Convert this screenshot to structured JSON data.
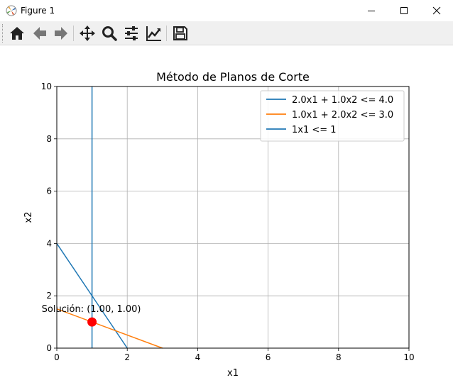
{
  "window": {
    "title": "Figure 1",
    "app_icon": "matplotlib-icon",
    "controls": [
      "minimize-icon",
      "maximize-icon",
      "close-icon"
    ]
  },
  "toolbar": {
    "buttons": [
      {
        "icon": "home-icon",
        "tooltip": ""
      },
      {
        "icon": "back-arrow-icon",
        "tooltip": ""
      },
      {
        "icon": "forward-arrow-icon",
        "tooltip": ""
      },
      {
        "icon": "pan-icon",
        "tooltip": ""
      },
      {
        "icon": "zoom-icon",
        "tooltip": ""
      },
      {
        "icon": "configure-subplots-icon",
        "tooltip": ""
      },
      {
        "icon": "edit-axis-icon",
        "tooltip": ""
      },
      {
        "icon": "save-icon",
        "tooltip": ""
      }
    ]
  },
  "chart_data": {
    "type": "line",
    "title": "Método de Planos de Corte",
    "xlabel": "x1",
    "ylabel": "x2",
    "xlim": [
      0,
      10
    ],
    "ylim": [
      0,
      10
    ],
    "xticks": [
      "0",
      "2",
      "4",
      "6",
      "8",
      "10"
    ],
    "yticks": [
      "0",
      "2",
      "4",
      "6",
      "8",
      "10"
    ],
    "grid": true,
    "legend_position": "top-right",
    "series": [
      {
        "name": "2.0x1 + 1.0x2 <= 4.0",
        "color": "#1f77b4",
        "points": [
          [
            0,
            4
          ],
          [
            2,
            0
          ]
        ]
      },
      {
        "name": "1.0x1 + 2.0x2 <= 3.0",
        "color": "#ff7f0e",
        "points": [
          [
            0,
            1.5
          ],
          [
            3,
            0
          ]
        ]
      },
      {
        "name": "1x1 <= 1",
        "color": "#1f77b4",
        "points": [
          [
            1,
            0
          ],
          [
            1,
            10
          ]
        ]
      }
    ],
    "solution": {
      "x": 1.0,
      "y": 1.0,
      "color": "#ff0000",
      "label": "Solución: (1.00, 1.00)"
    }
  }
}
